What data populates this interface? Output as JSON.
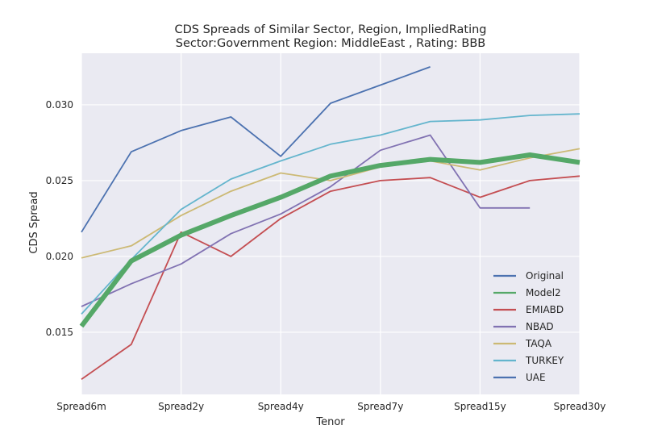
{
  "chart_data": {
    "type": "line",
    "title": "CDS Spreads of Similar Sector, Region, ImpliedRating",
    "subtitle": "Sector:Government Region: MiddleEast , Rating: BBB",
    "xlabel": "Tenor",
    "ylabel": "CDS Spread",
    "x": [
      0,
      1,
      2,
      3,
      4,
      5,
      6,
      7,
      8,
      9,
      10
    ],
    "xticks": [
      {
        "pos": 0,
        "label": "Spread6m"
      },
      {
        "pos": 2,
        "label": "Spread2y"
      },
      {
        "pos": 4,
        "label": "Spread4y"
      },
      {
        "pos": 6,
        "label": "Spread7y"
      },
      {
        "pos": 8,
        "label": "Spread15y"
      },
      {
        "pos": 10,
        "label": "Spread30y"
      }
    ],
    "yticks": [
      0.015,
      0.02,
      0.025,
      0.03
    ],
    "ytick_labels": [
      "0.015",
      "0.020",
      "0.025",
      "0.030"
    ],
    "xlim": [
      0,
      10
    ],
    "ylim": [
      0.0109,
      0.0334
    ],
    "grid": true,
    "legend_position": "lower-right",
    "series": [
      {
        "name": "Original",
        "color": "#4c72b0",
        "width": 1.8,
        "values": [
          0.0216,
          0.0269,
          0.0283,
          0.0292,
          0.0266,
          0.0301,
          0.0313,
          0.0325,
          null,
          null,
          null
        ]
      },
      {
        "name": "Model2",
        "color": "#55a868",
        "width": 6,
        "values": [
          0.0154,
          0.0197,
          0.0214,
          0.0227,
          0.0239,
          0.0253,
          0.026,
          0.0264,
          0.0262,
          0.0267,
          0.0262
        ]
      },
      {
        "name": "EMIABD",
        "color": "#c44e52",
        "width": 1.8,
        "values": [
          0.0119,
          0.0142,
          0.0216,
          0.02,
          0.0225,
          0.0243,
          0.025,
          0.0252,
          0.0239,
          0.025,
          0.0253
        ]
      },
      {
        "name": "NBAD",
        "color": "#8172b2",
        "width": 1.8,
        "values": [
          0.0167,
          0.0182,
          0.0195,
          0.0215,
          0.0228,
          0.0246,
          0.027,
          0.028,
          0.0232,
          0.0232,
          null
        ]
      },
      {
        "name": "TAQA",
        "color": "#ccb974",
        "width": 1.8,
        "values": [
          0.0199,
          0.0207,
          0.0227,
          0.0243,
          0.0255,
          0.025,
          0.0259,
          0.0263,
          0.0257,
          0.0265,
          0.0271
        ]
      },
      {
        "name": "TURKEY",
        "color": "#64b5cd",
        "width": 1.8,
        "values": [
          0.0162,
          0.0198,
          0.0231,
          0.0251,
          0.0263,
          0.0274,
          0.028,
          0.0289,
          0.029,
          0.0293,
          0.0294
        ]
      },
      {
        "name": "UAE",
        "color": "#4c72b0",
        "width": 1.8,
        "values": [
          null,
          null,
          null,
          null,
          null,
          null,
          null,
          null,
          null,
          null,
          null
        ]
      }
    ]
  }
}
